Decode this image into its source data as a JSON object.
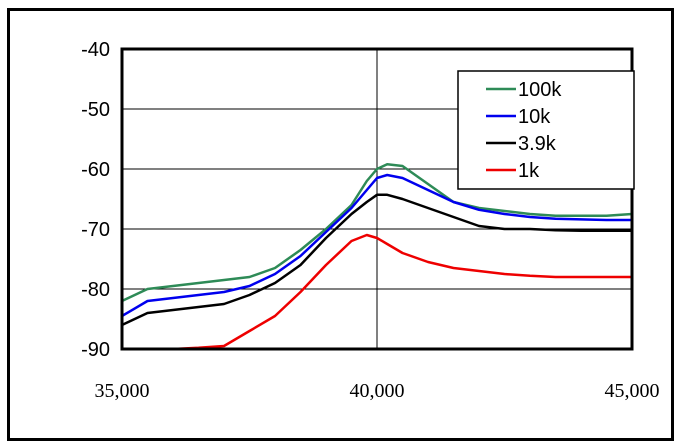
{
  "chart_data": {
    "type": "line",
    "title": "",
    "xlabel": "",
    "ylabel": "",
    "xlim": [
      35000,
      45000
    ],
    "ylim": [
      -90,
      -40
    ],
    "x_ticks": [
      35000,
      40000,
      45000
    ],
    "x_tick_labels": [
      "35,000",
      "40,000",
      "45,000"
    ],
    "y_ticks": [
      -40,
      -50,
      -60,
      -70,
      -80,
      -90
    ],
    "y_tick_labels": [
      "-40",
      "-50",
      "-60",
      "-70",
      "-80",
      "-90"
    ],
    "grid": true,
    "legend_position": "top-right",
    "series": [
      {
        "name": "100k",
        "color": "#2e8b57",
        "x": [
          35000,
          35500,
          36000,
          36500,
          37000,
          37500,
          38000,
          38500,
          39000,
          39500,
          39800,
          40000,
          40200,
          40500,
          41000,
          41500,
          42000,
          42500,
          43000,
          43500,
          44000,
          44500,
          45000
        ],
        "y": [
          -82,
          -80,
          -79.5,
          -79,
          -78.5,
          -78,
          -76.5,
          -73.5,
          -70,
          -66,
          -62,
          -60,
          -59.2,
          -59.5,
          -62.5,
          -65.5,
          -66.5,
          -67,
          -67.5,
          -67.8,
          -67.8,
          -67.8,
          -67.5
        ]
      },
      {
        "name": "10k",
        "color": "#0000ee",
        "x": [
          35000,
          35500,
          36000,
          36500,
          37000,
          37500,
          38000,
          38500,
          39000,
          39500,
          39800,
          40000,
          40200,
          40500,
          41000,
          41500,
          42000,
          42500,
          43000,
          43500,
          44000,
          44500,
          45000
        ],
        "y": [
          -84.5,
          -82,
          -81.5,
          -81,
          -80.5,
          -79.5,
          -77.5,
          -74.5,
          -70.5,
          -66.5,
          -63.5,
          -61.5,
          -61,
          -61.5,
          -63.5,
          -65.5,
          -66.8,
          -67.5,
          -68,
          -68.3,
          -68.4,
          -68.5,
          -68.5
        ]
      },
      {
        "name": "3.9k",
        "color": "#000000",
        "x": [
          35000,
          35500,
          36000,
          36500,
          37000,
          37500,
          38000,
          38500,
          39000,
          39500,
          39800,
          40000,
          40200,
          40500,
          41000,
          41500,
          42000,
          42500,
          43000,
          43500,
          44000,
          44500,
          45000
        ],
        "y": [
          -86,
          -84,
          -83.5,
          -83,
          -82.5,
          -81,
          -79,
          -76,
          -71.5,
          -67.5,
          -65.5,
          -64.3,
          -64.3,
          -65,
          -66.5,
          -68,
          -69.5,
          -70,
          -70,
          -70.2,
          -70.3,
          -70.3,
          -70.3
        ]
      },
      {
        "name": "1k",
        "color": "#ee0000",
        "x": [
          35000,
          35500,
          36000,
          36500,
          37000,
          37500,
          38000,
          38500,
          39000,
          39500,
          39800,
          40000,
          40200,
          40500,
          41000,
          41500,
          42000,
          42500,
          43000,
          43500,
          44000,
          44500,
          45000
        ],
        "y": [
          -90,
          -90,
          -90,
          -89.8,
          -89.5,
          -87,
          -84.5,
          -80.5,
          -76,
          -72,
          -71,
          -71.5,
          -72.5,
          -74,
          -75.5,
          -76.5,
          -77,
          -77.5,
          -77.8,
          -78,
          -78,
          -78,
          -78
        ]
      }
    ]
  }
}
